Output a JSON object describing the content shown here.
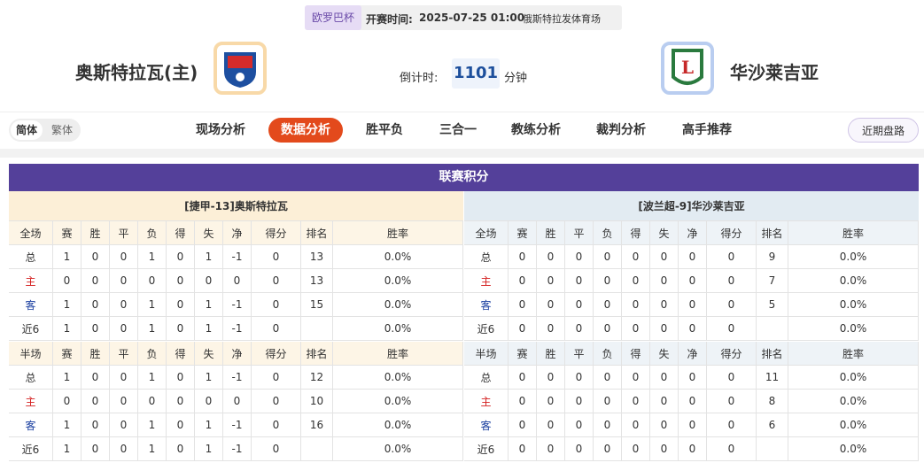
{
  "header": {
    "league": "欧罗巴杯",
    "time_label": "开赛时间:",
    "time": "2025-07-25 01:00",
    "venue": "俄斯特拉发体育场"
  },
  "match": {
    "home": "奥斯特拉瓦(主)",
    "away": "华沙莱吉亚",
    "countdown_label": "倒计时:",
    "countdown": "1101",
    "countdown_unit": "分钟"
  },
  "nav": {
    "lang": [
      "简体",
      "繁体"
    ],
    "tabs": [
      "现场分析",
      "数据分析",
      "胜平负",
      "三合一",
      "教练分析",
      "裁判分析",
      "高手推荐"
    ],
    "right_button": "近期盘路"
  },
  "standings": {
    "title": "联赛积分",
    "teams": [
      {
        "title": "[捷甲-13]奥斯特拉瓦",
        "sections": [
          {
            "header": [
              "全场",
              "赛",
              "胜",
              "平",
              "负",
              "得",
              "失",
              "净",
              "得分",
              "排名",
              "胜率"
            ],
            "rows": [
              [
                "总",
                1,
                0,
                0,
                1,
                0,
                1,
                -1,
                0,
                13,
                "0.0%"
              ],
              [
                "主",
                0,
                0,
                0,
                0,
                0,
                0,
                0,
                0,
                13,
                "0.0%"
              ],
              [
                "客",
                1,
                0,
                0,
                1,
                0,
                1,
                -1,
                0,
                15,
                "0.0%"
              ],
              [
                "近6",
                1,
                0,
                0,
                1,
                0,
                1,
                -1,
                0,
                null,
                "0.0%"
              ]
            ]
          },
          {
            "header": [
              "半场",
              "赛",
              "胜",
              "平",
              "负",
              "得",
              "失",
              "净",
              "得分",
              "排名",
              "胜率"
            ],
            "rows": [
              [
                "总",
                1,
                0,
                0,
                1,
                0,
                1,
                -1,
                0,
                12,
                "0.0%"
              ],
              [
                "主",
                0,
                0,
                0,
                0,
                0,
                0,
                0,
                0,
                10,
                "0.0%"
              ],
              [
                "客",
                1,
                0,
                0,
                1,
                0,
                1,
                -1,
                0,
                16,
                "0.0%"
              ],
              [
                "近6",
                1,
                0,
                0,
                1,
                0,
                1,
                -1,
                0,
                null,
                "0.0%"
              ]
            ]
          }
        ]
      },
      {
        "title": "[波兰超-9]华沙莱吉亚",
        "sections": [
          {
            "header": [
              "全场",
              "赛",
              "胜",
              "平",
              "负",
              "得",
              "失",
              "净",
              "得分",
              "排名",
              "胜率"
            ],
            "rows": [
              [
                "总",
                0,
                0,
                0,
                0,
                0,
                0,
                0,
                0,
                9,
                "0.0%"
              ],
              [
                "主",
                0,
                0,
                0,
                0,
                0,
                0,
                0,
                0,
                7,
                "0.0%"
              ],
              [
                "客",
                0,
                0,
                0,
                0,
                0,
                0,
                0,
                0,
                5,
                "0.0%"
              ],
              [
                "近6",
                0,
                0,
                0,
                0,
                0,
                0,
                0,
                0,
                null,
                "0.0%"
              ]
            ]
          },
          {
            "header": [
              "半场",
              "赛",
              "胜",
              "平",
              "负",
              "得",
              "失",
              "净",
              "得分",
              "排名",
              "胜率"
            ],
            "rows": [
              [
                "总",
                0,
                0,
                0,
                0,
                0,
                0,
                0,
                0,
                11,
                "0.0%"
              ],
              [
                "主",
                0,
                0,
                0,
                0,
                0,
                0,
                0,
                0,
                8,
                "0.0%"
              ],
              [
                "客",
                0,
                0,
                0,
                0,
                0,
                0,
                0,
                0,
                6,
                "0.0%"
              ],
              [
                "近6",
                0,
                0,
                0,
                0,
                0,
                0,
                0,
                0,
                null,
                "0.0%"
              ]
            ]
          }
        ]
      }
    ]
  }
}
